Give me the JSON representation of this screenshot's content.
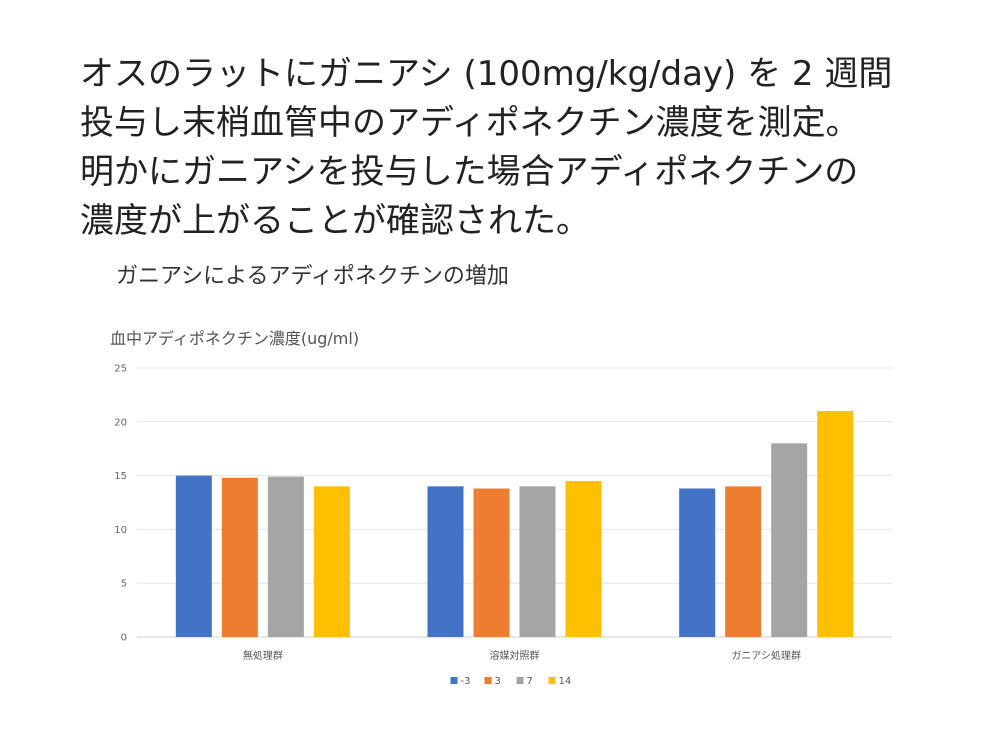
{
  "slide": {
    "heading_lines": [
      "オスのラットにガニアシ (100mg/kg/day) を 2 週間",
      "投与し末梢血管中のアディポネクチン濃度を測定。",
      "明かにガニアシを投与した場合アディポネクチンの",
      "濃度が上がることが確認された。"
    ]
  },
  "chart_data": {
    "type": "bar",
    "title": "ガニアシによるアディポネクチンの増加",
    "xlabel": "",
    "ylabel": "血中アディポネクチン濃度(ug/ml)",
    "ylim": [
      0,
      25
    ],
    "yticks": [
      0,
      5,
      10,
      15,
      20,
      25
    ],
    "grid": true,
    "legend_position": "bottom",
    "categories": [
      "無処理群",
      "溶媒対照群",
      "ガニアシ処理群"
    ],
    "series": [
      {
        "name": "-3",
        "color": "#4472C4",
        "values": [
          15.0,
          14.0,
          13.8
        ]
      },
      {
        "name": "3",
        "color": "#ED7D31",
        "values": [
          14.8,
          13.8,
          14.0
        ]
      },
      {
        "name": "7",
        "color": "#A5A5A5",
        "values": [
          14.9,
          14.0,
          18.0
        ]
      },
      {
        "name": "14",
        "color": "#FFC000",
        "values": [
          14.0,
          14.5,
          21.0
        ]
      }
    ]
  }
}
